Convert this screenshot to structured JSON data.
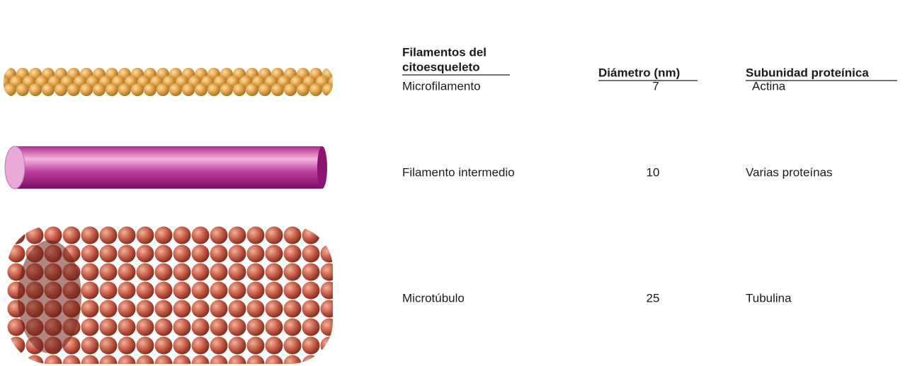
{
  "table": {
    "headers": [
      [
        "Filamentos del",
        "citoesqueleto"
      ],
      "Diámetro (nm)",
      "Subunidad proteínica"
    ],
    "rows": [
      [
        "Microfilamento",
        7,
        "Actina"
      ],
      [
        "Filamento intermedio",
        10,
        "Varias proteínas"
      ],
      [
        "Microtúbulo",
        25,
        "Tubulina"
      ]
    ]
  }
}
